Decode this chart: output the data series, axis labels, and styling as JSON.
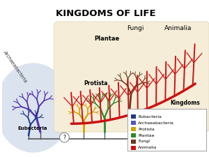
{
  "title": "KINGDOMS OF LIFE",
  "title_fontsize": 9.5,
  "title_fontweight": "bold",
  "fig_bg": "#ffffff",
  "bg_panel_color": "#f5edd8",
  "bg_left_color": "#dde8f0",
  "kingdoms": [
    "Eubacteria",
    "Archaeabacteria",
    "Protista",
    "Plantae",
    "Fungi",
    "Animalia"
  ],
  "legend_colors": [
    "#1a3a8a",
    "#5555bb",
    "#d4a000",
    "#2a8a2a",
    "#6b3a1f",
    "#cc1111"
  ],
  "label_fungi": "Fungi",
  "label_animalia": "Animalia",
  "label_plantae": "Plantae",
  "label_protista": "Protista",
  "label_eubacteria": "Eubacteria",
  "label_archaeabacteria": "Archaeabacteria",
  "label_kingdoms": "Kingdoms",
  "question_mark": "?",
  "eubacteria_color": "#1a3a8a",
  "archaeabacteria_color": "#5533aa",
  "protista_color": "#d4a000",
  "plantae_color": "#2a8a2a",
  "fungi_color": "#6b3a1f",
  "animalia_color": "#cc1111"
}
